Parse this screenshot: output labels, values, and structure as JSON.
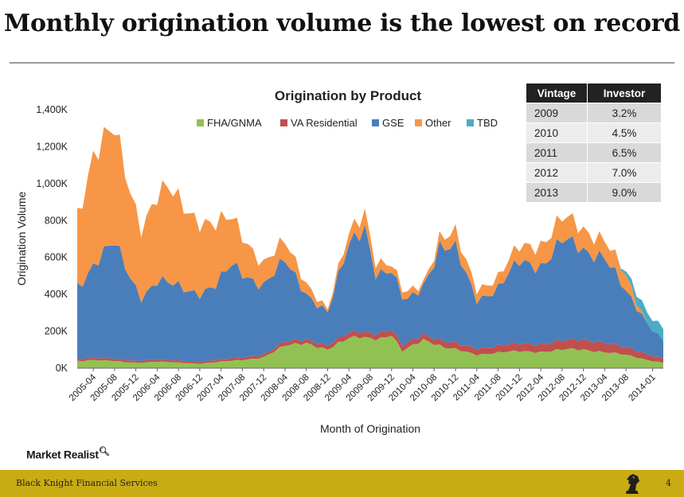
{
  "slide": {
    "title": "Monthly origination volume is the lowest on record",
    "footer_company": "Black Knight Financial Services",
    "page_number": "4",
    "watermark": "Market Realist",
    "watermark_icon": "magnifier-icon"
  },
  "table": {
    "headers": [
      "Vintage",
      "Investor"
    ],
    "rows": [
      [
        "2009",
        "3.2%"
      ],
      [
        "2010",
        "4.5%"
      ],
      [
        "2011",
        "6.5%"
      ],
      [
        "2012",
        "7.0%"
      ],
      [
        "2013",
        "9.0%"
      ]
    ]
  },
  "chart_data": {
    "type": "area",
    "stacked": true,
    "title": "Origination by Product",
    "xlabel": "Month of Origination",
    "ylabel": "Origination Volume",
    "ylim": [
      0,
      1400000
    ],
    "yticks": [
      0,
      200000,
      400000,
      600000,
      800000,
      1000000,
      1200000,
      1400000
    ],
    "ytick_labels": [
      "0K",
      "200K",
      "400K",
      "600K",
      "800K",
      "1,000K",
      "1,200K",
      "1,400K"
    ],
    "x_start": "2005-01",
    "x_end": "2014-03",
    "x_tick_labels": [
      "2005-04",
      "2005-08",
      "2005-12",
      "2006-04",
      "2006-08",
      "2006-12",
      "2007-04",
      "2007-08",
      "2007-12",
      "2008-04",
      "2008-08",
      "2008-12",
      "2009-04",
      "2009-08",
      "2009-12",
      "2010-04",
      "2010-08",
      "2010-12",
      "2011-04",
      "2011-08",
      "2011-12",
      "2012-04",
      "2012-08",
      "2012-12",
      "2013-04",
      "2013-08",
      "2014-01"
    ],
    "legend_position": "top",
    "grid": false,
    "series": [
      {
        "name": "FHA/GNMA",
        "color": "#92c153",
        "keypoints": [
          [
            "2005-01",
            40000
          ],
          [
            "2005-04",
            45000
          ],
          [
            "2005-12",
            30000
          ],
          [
            "2006-04",
            35000
          ],
          [
            "2006-12",
            25000
          ],
          [
            "2007-04",
            35000
          ],
          [
            "2007-08",
            45000
          ],
          [
            "2007-12",
            60000
          ],
          [
            "2008-04",
            120000
          ],
          [
            "2008-08",
            140000
          ],
          [
            "2008-12",
            100000
          ],
          [
            "2009-04",
            160000
          ],
          [
            "2009-06",
            175000
          ],
          [
            "2009-10",
            160000
          ],
          [
            "2009-12",
            175000
          ],
          [
            "2010-02",
            90000
          ],
          [
            "2010-06",
            160000
          ],
          [
            "2010-10",
            110000
          ],
          [
            "2010-12",
            100000
          ],
          [
            "2011-04",
            75000
          ],
          [
            "2011-08",
            85000
          ],
          [
            "2011-12",
            90000
          ],
          [
            "2012-04",
            90000
          ],
          [
            "2012-08",
            100000
          ],
          [
            "2012-12",
            100000
          ],
          [
            "2013-04",
            90000
          ],
          [
            "2013-08",
            70000
          ],
          [
            "2013-12",
            45000
          ],
          [
            "2014-03",
            30000
          ]
        ]
      },
      {
        "name": "VA Residential",
        "color": "#c0504d",
        "keypoints": [
          [
            "2005-01",
            12000
          ],
          [
            "2006-12",
            10000
          ],
          [
            "2007-12",
            15000
          ],
          [
            "2008-04",
            20000
          ],
          [
            "2008-12",
            22000
          ],
          [
            "2009-06",
            30000
          ],
          [
            "2010-06",
            30000
          ],
          [
            "2011-06",
            35000
          ],
          [
            "2012-06",
            45000
          ],
          [
            "2013-03",
            55000
          ],
          [
            "2013-08",
            40000
          ],
          [
            "2014-03",
            25000
          ]
        ]
      },
      {
        "name": "GSE",
        "color": "#4a7ebb",
        "keypoints": [
          [
            "2005-01",
            400000
          ],
          [
            "2005-04",
            500000
          ],
          [
            "2005-08",
            620000
          ],
          [
            "2006-01",
            350000
          ],
          [
            "2006-04",
            420000
          ],
          [
            "2006-12",
            380000
          ],
          [
            "2007-03",
            400000
          ],
          [
            "2007-06",
            500000
          ],
          [
            "2007-12",
            380000
          ],
          [
            "2008-04",
            430000
          ],
          [
            "2008-08",
            250000
          ],
          [
            "2008-12",
            180000
          ],
          [
            "2009-04",
            470000
          ],
          [
            "2009-07",
            580000
          ],
          [
            "2009-09",
            330000
          ],
          [
            "2009-12",
            310000
          ],
          [
            "2010-03",
            230000
          ],
          [
            "2010-06",
            270000
          ],
          [
            "2010-09",
            500000
          ],
          [
            "2010-12",
            500000
          ],
          [
            "2011-04",
            270000
          ],
          [
            "2011-08",
            310000
          ],
          [
            "2011-12",
            440000
          ],
          [
            "2012-04",
            430000
          ],
          [
            "2012-08",
            540000
          ],
          [
            "2012-12",
            480000
          ],
          [
            "2013-04",
            480000
          ],
          [
            "2013-08",
            290000
          ],
          [
            "2013-12",
            170000
          ],
          [
            "2014-03",
            100000
          ]
        ]
      },
      {
        "name": "Other",
        "color": "#f79646",
        "keypoints": [
          [
            "2005-01",
            400000
          ],
          [
            "2005-04",
            600000
          ],
          [
            "2005-08",
            600000
          ],
          [
            "2006-01",
            390000
          ],
          [
            "2006-06",
            500000
          ],
          [
            "2006-12",
            400000
          ],
          [
            "2007-06",
            250000
          ],
          [
            "2007-12",
            120000
          ],
          [
            "2008-04",
            100000
          ],
          [
            "2008-08",
            60000
          ],
          [
            "2008-12",
            15000
          ],
          [
            "2009-04",
            60000
          ],
          [
            "2009-07",
            90000
          ],
          [
            "2009-12",
            35000
          ],
          [
            "2010-03",
            40000
          ],
          [
            "2010-06",
            20000
          ],
          [
            "2010-12",
            80000
          ],
          [
            "2011-04",
            60000
          ],
          [
            "2011-08",
            60000
          ],
          [
            "2011-12",
            80000
          ],
          [
            "2012-04",
            120000
          ],
          [
            "2012-08",
            120000
          ],
          [
            "2012-12",
            110000
          ],
          [
            "2013-04",
            100000
          ],
          [
            "2013-08",
            80000
          ],
          [
            "2013-10",
            30000
          ],
          [
            "2013-12",
            0
          ],
          [
            "2014-03",
            0
          ]
        ]
      },
      {
        "name": "TBD",
        "color": "#4bacc6",
        "keypoints": [
          [
            "2005-01",
            0
          ],
          [
            "2013-06",
            0
          ],
          [
            "2013-08",
            20000
          ],
          [
            "2013-10",
            50000
          ],
          [
            "2013-12",
            60000
          ],
          [
            "2014-03",
            70000
          ]
        ]
      }
    ]
  }
}
